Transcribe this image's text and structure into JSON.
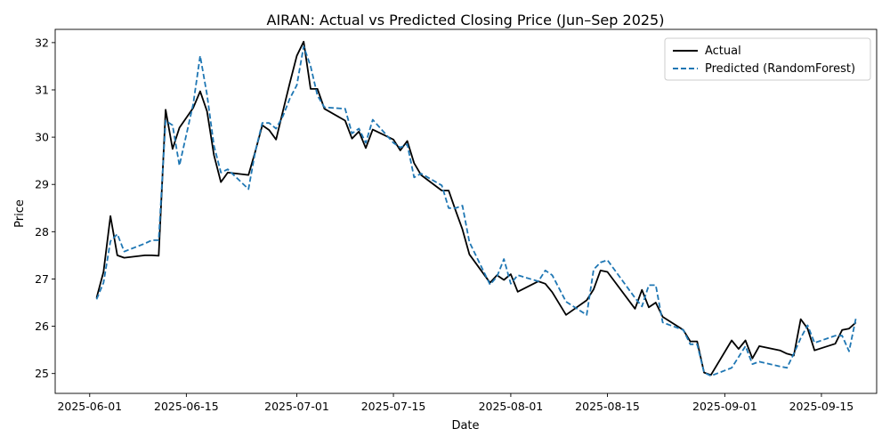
{
  "chart_data": {
    "type": "line",
    "title": "AIRAN: Actual vs Predicted Closing Price (Jun–Sep 2025)",
    "xlabel": "Date",
    "ylabel": "Price",
    "xlim": [
      "2025-05-27",
      "2025-09-23"
    ],
    "ylim": [
      24.58,
      32.28
    ],
    "x_ticks": [
      "2025-06-01",
      "2025-06-15",
      "2025-07-01",
      "2025-07-15",
      "2025-08-01",
      "2025-08-15",
      "2025-09-01",
      "2025-09-15"
    ],
    "y_ticks": [
      25,
      26,
      27,
      28,
      29,
      30,
      31,
      32
    ],
    "grid": false,
    "legend_position": "top-right",
    "colors": {
      "actual": "#000000",
      "predicted": "#1f77b4"
    },
    "series": [
      {
        "name": "Actual",
        "style": "solid",
        "points": [
          [
            "2025-06-02",
            26.6
          ],
          [
            "2025-06-03",
            27.15
          ],
          [
            "2025-06-04",
            28.33
          ],
          [
            "2025-06-05",
            27.5
          ],
          [
            "2025-06-06",
            27.45
          ],
          [
            "2025-06-09",
            27.5
          ],
          [
            "2025-06-10",
            27.5
          ],
          [
            "2025-06-11",
            27.49
          ],
          [
            "2025-06-12",
            30.58
          ],
          [
            "2025-06-13",
            29.75
          ],
          [
            "2025-06-14",
            30.2
          ],
          [
            "2025-06-16",
            30.62
          ],
          [
            "2025-06-17",
            30.97
          ],
          [
            "2025-06-18",
            30.55
          ],
          [
            "2025-06-19",
            29.62
          ],
          [
            "2025-06-20",
            29.05
          ],
          [
            "2025-06-21",
            29.25
          ],
          [
            "2025-06-24",
            29.2
          ],
          [
            "2025-06-25",
            29.7
          ],
          [
            "2025-06-26",
            30.25
          ],
          [
            "2025-06-27",
            30.15
          ],
          [
            "2025-06-28",
            29.95
          ],
          [
            "2025-06-29",
            30.56
          ],
          [
            "2025-06-30",
            31.15
          ],
          [
            "2025-07-01",
            31.72
          ],
          [
            "2025-07-02",
            32.02
          ],
          [
            "2025-07-03",
            31.02
          ],
          [
            "2025-07-04",
            31.02
          ],
          [
            "2025-07-05",
            30.6
          ],
          [
            "2025-07-08",
            30.35
          ],
          [
            "2025-07-09",
            29.97
          ],
          [
            "2025-07-10",
            30.12
          ],
          [
            "2025-07-11",
            29.77
          ],
          [
            "2025-07-12",
            30.16
          ],
          [
            "2025-07-15",
            29.95
          ],
          [
            "2025-07-16",
            29.72
          ],
          [
            "2025-07-17",
            29.92
          ],
          [
            "2025-07-18",
            29.45
          ],
          [
            "2025-07-19",
            29.2
          ],
          [
            "2025-07-22",
            28.87
          ],
          [
            "2025-07-23",
            28.87
          ],
          [
            "2025-07-24",
            28.45
          ],
          [
            "2025-07-25",
            28.05
          ],
          [
            "2025-07-26",
            27.52
          ],
          [
            "2025-07-29",
            26.92
          ],
          [
            "2025-07-30",
            27.08
          ],
          [
            "2025-07-31",
            26.98
          ],
          [
            "2025-08-01",
            27.1
          ],
          [
            "2025-08-02",
            26.73
          ],
          [
            "2025-08-05",
            26.95
          ],
          [
            "2025-08-06",
            26.9
          ],
          [
            "2025-08-07",
            26.72
          ],
          [
            "2025-08-09",
            26.24
          ],
          [
            "2025-08-12",
            26.55
          ],
          [
            "2025-08-13",
            26.78
          ],
          [
            "2025-08-14",
            27.18
          ],
          [
            "2025-08-15",
            27.15
          ],
          [
            "2025-08-19",
            26.37
          ],
          [
            "2025-08-20",
            26.77
          ],
          [
            "2025-08-21",
            26.4
          ],
          [
            "2025-08-22",
            26.5
          ],
          [
            "2025-08-23",
            26.2
          ],
          [
            "2025-08-26",
            25.92
          ],
          [
            "2025-08-27",
            25.68
          ],
          [
            "2025-08-28",
            25.68
          ],
          [
            "2025-08-29",
            25.02
          ],
          [
            "2025-08-30",
            24.97
          ],
          [
            "2025-09-02",
            25.7
          ],
          [
            "2025-09-03",
            25.52
          ],
          [
            "2025-09-04",
            25.7
          ],
          [
            "2025-09-05",
            25.32
          ],
          [
            "2025-09-06",
            25.58
          ],
          [
            "2025-09-09",
            25.49
          ],
          [
            "2025-09-10",
            25.42
          ],
          [
            "2025-09-11",
            25.38
          ],
          [
            "2025-09-12",
            26.15
          ],
          [
            "2025-09-13",
            25.95
          ],
          [
            "2025-09-14",
            25.49
          ],
          [
            "2025-09-17",
            25.63
          ],
          [
            "2025-09-18",
            25.92
          ],
          [
            "2025-09-19",
            25.95
          ],
          [
            "2025-09-20",
            26.08
          ]
        ]
      },
      {
        "name": "Predicted (RandomForest)",
        "style": "dashed",
        "points": [
          [
            "2025-06-02",
            26.57
          ],
          [
            "2025-06-03",
            26.92
          ],
          [
            "2025-06-04",
            27.8
          ],
          [
            "2025-06-05",
            27.95
          ],
          [
            "2025-06-06",
            27.58
          ],
          [
            "2025-06-09",
            27.75
          ],
          [
            "2025-06-10",
            27.82
          ],
          [
            "2025-06-11",
            27.82
          ],
          [
            "2025-06-12",
            30.35
          ],
          [
            "2025-06-13",
            30.25
          ],
          [
            "2025-06-14",
            29.4
          ],
          [
            "2025-06-16",
            30.7
          ],
          [
            "2025-06-17",
            31.72
          ],
          [
            "2025-06-18",
            30.9
          ],
          [
            "2025-06-19",
            29.82
          ],
          [
            "2025-06-20",
            29.25
          ],
          [
            "2025-06-21",
            29.32
          ],
          [
            "2025-06-24",
            28.9
          ],
          [
            "2025-06-25",
            29.7
          ],
          [
            "2025-06-26",
            30.3
          ],
          [
            "2025-06-27",
            30.3
          ],
          [
            "2025-06-28",
            30.18
          ],
          [
            "2025-06-29",
            30.45
          ],
          [
            "2025-06-30",
            30.82
          ],
          [
            "2025-07-01",
            31.1
          ],
          [
            "2025-07-02",
            31.92
          ],
          [
            "2025-07-03",
            31.5
          ],
          [
            "2025-07-04",
            30.88
          ],
          [
            "2025-07-05",
            30.63
          ],
          [
            "2025-07-08",
            30.6
          ],
          [
            "2025-07-09",
            30.08
          ],
          [
            "2025-07-10",
            30.18
          ],
          [
            "2025-07-11",
            29.88
          ],
          [
            "2025-07-12",
            30.37
          ],
          [
            "2025-07-15",
            29.88
          ],
          [
            "2025-07-16",
            29.78
          ],
          [
            "2025-07-17",
            29.85
          ],
          [
            "2025-07-18",
            29.15
          ],
          [
            "2025-07-19",
            29.23
          ],
          [
            "2025-07-22",
            28.98
          ],
          [
            "2025-07-23",
            28.5
          ],
          [
            "2025-07-24",
            28.5
          ],
          [
            "2025-07-25",
            28.55
          ],
          [
            "2025-07-26",
            27.78
          ],
          [
            "2025-07-29",
            26.88
          ],
          [
            "2025-07-30",
            27.05
          ],
          [
            "2025-07-31",
            27.42
          ],
          [
            "2025-08-01",
            26.9
          ],
          [
            "2025-08-02",
            27.08
          ],
          [
            "2025-08-05",
            26.95
          ],
          [
            "2025-08-06",
            27.18
          ],
          [
            "2025-08-07",
            27.08
          ],
          [
            "2025-08-09",
            26.52
          ],
          [
            "2025-08-12",
            26.24
          ],
          [
            "2025-08-13",
            27.2
          ],
          [
            "2025-08-14",
            27.35
          ],
          [
            "2025-08-15",
            27.4
          ],
          [
            "2025-08-19",
            26.6
          ],
          [
            "2025-08-20",
            26.42
          ],
          [
            "2025-08-21",
            26.87
          ],
          [
            "2025-08-22",
            26.87
          ],
          [
            "2025-08-23",
            26.08
          ],
          [
            "2025-08-26",
            25.92
          ],
          [
            "2025-08-27",
            25.62
          ],
          [
            "2025-08-28",
            25.62
          ],
          [
            "2025-08-29",
            25.02
          ],
          [
            "2025-08-30",
            24.95
          ],
          [
            "2025-09-02",
            25.12
          ],
          [
            "2025-09-03",
            25.35
          ],
          [
            "2025-09-04",
            25.58
          ],
          [
            "2025-09-05",
            25.2
          ],
          [
            "2025-09-06",
            25.25
          ],
          [
            "2025-09-09",
            25.15
          ],
          [
            "2025-09-10",
            25.12
          ],
          [
            "2025-09-11",
            25.42
          ],
          [
            "2025-09-12",
            25.75
          ],
          [
            "2025-09-13",
            26.02
          ],
          [
            "2025-09-14",
            25.65
          ],
          [
            "2025-09-17",
            25.8
          ],
          [
            "2025-09-18",
            25.8
          ],
          [
            "2025-09-19",
            25.47
          ],
          [
            "2025-09-20",
            26.17
          ]
        ]
      }
    ]
  }
}
